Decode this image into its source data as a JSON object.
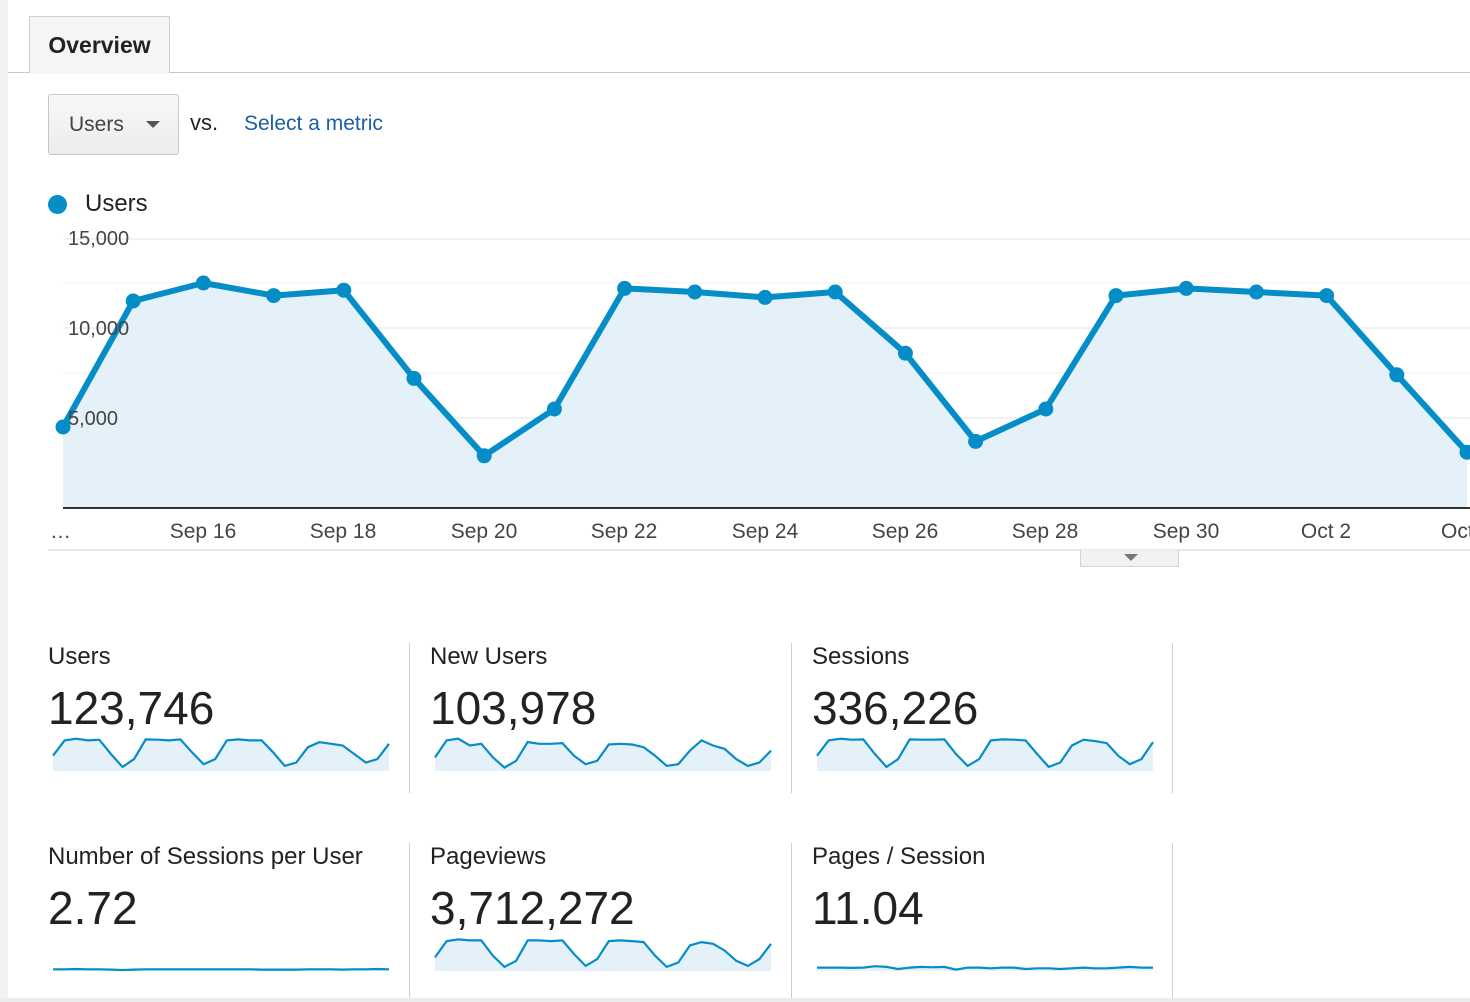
{
  "tabs": {
    "overview": "Overview"
  },
  "metric_picker": {
    "selected": "Users",
    "vs": "vs.",
    "select_metric": "Select a metric"
  },
  "legend": {
    "users": "Users"
  },
  "colors": {
    "line": "#058dc7",
    "fill": "#e4f1f8",
    "link": "#1a5fa8"
  },
  "chart_data": {
    "type": "area",
    "series": [
      {
        "name": "Users",
        "values": [
          4500,
          11500,
          12500,
          11800,
          12100,
          7200,
          2900,
          5500,
          12200,
          12000,
          11700,
          12000,
          8600,
          3700,
          5500,
          11800,
          12200,
          12000,
          11800,
          7400,
          3100
        ]
      }
    ],
    "x_tick_labels": [
      "…",
      "Sep 16",
      "Sep 18",
      "Sep 20",
      "Sep 22",
      "Sep 24",
      "Sep 26",
      "Sep 28",
      "Sep 30",
      "Oct 2",
      "Oct"
    ],
    "y_tick_labels": [
      "5,000",
      "10,000",
      "15,000"
    ],
    "ylim": [
      0,
      15000
    ],
    "grid": true
  },
  "scorecards": [
    {
      "label": "Users",
      "value": "123,746",
      "spark": [
        0.45,
        0.9,
        0.95,
        0.9,
        0.92,
        0.5,
        0.12,
        0.35,
        0.93,
        0.92,
        0.9,
        0.93,
        0.55,
        0.2,
        0.35,
        0.9,
        0.93,
        0.9,
        0.9,
        0.55,
        0.15,
        0.25,
        0.7,
        0.85,
        0.8,
        0.75,
        0.5,
        0.25,
        0.35,
        0.8
      ]
    },
    {
      "label": "New Users",
      "value": "103,978",
      "spark": [
        0.4,
        0.9,
        0.95,
        0.75,
        0.8,
        0.4,
        0.1,
        0.3,
        0.85,
        0.8,
        0.8,
        0.82,
        0.45,
        0.2,
        0.3,
        0.78,
        0.8,
        0.78,
        0.7,
        0.45,
        0.15,
        0.2,
        0.6,
        0.9,
        0.75,
        0.65,
        0.35,
        0.15,
        0.25,
        0.6
      ]
    },
    {
      "label": "Sessions",
      "value": "336,226",
      "spark": [
        0.45,
        0.9,
        0.95,
        0.92,
        0.93,
        0.5,
        0.12,
        0.35,
        0.93,
        0.92,
        0.92,
        0.93,
        0.5,
        0.15,
        0.35,
        0.9,
        0.93,
        0.92,
        0.9,
        0.5,
        0.12,
        0.25,
        0.75,
        0.92,
        0.88,
        0.82,
        0.45,
        0.2,
        0.35,
        0.85
      ]
    },
    {
      "label": "Number of Sessions per User",
      "value": "2.72",
      "spark": [
        0.05,
        0.05,
        0.06,
        0.05,
        0.05,
        0.04,
        0.03,
        0.04,
        0.05,
        0.05,
        0.05,
        0.05,
        0.05,
        0.05,
        0.05,
        0.05,
        0.05,
        0.05,
        0.04,
        0.04,
        0.04,
        0.04,
        0.05,
        0.05,
        0.05,
        0.04,
        0.05,
        0.05,
        0.06,
        0.05
      ]
    },
    {
      "label": "Pageviews",
      "value": "3,712,272",
      "spark": [
        0.4,
        0.88,
        0.93,
        0.9,
        0.9,
        0.45,
        0.12,
        0.3,
        0.9,
        0.9,
        0.88,
        0.9,
        0.5,
        0.15,
        0.35,
        0.88,
        0.9,
        0.88,
        0.85,
        0.45,
        0.12,
        0.25,
        0.75,
        0.85,
        0.8,
        0.6,
        0.3,
        0.15,
        0.35,
        0.8
      ]
    },
    {
      "label": "Pages / Session",
      "value": "11.04",
      "spark": [
        0.1,
        0.1,
        0.1,
        0.09,
        0.1,
        0.14,
        0.12,
        0.06,
        0.1,
        0.12,
        0.11,
        0.12,
        0.04,
        0.1,
        0.1,
        0.08,
        0.1,
        0.1,
        0.06,
        0.08,
        0.08,
        0.06,
        0.08,
        0.1,
        0.08,
        0.08,
        0.1,
        0.12,
        0.1,
        0.1
      ]
    }
  ]
}
